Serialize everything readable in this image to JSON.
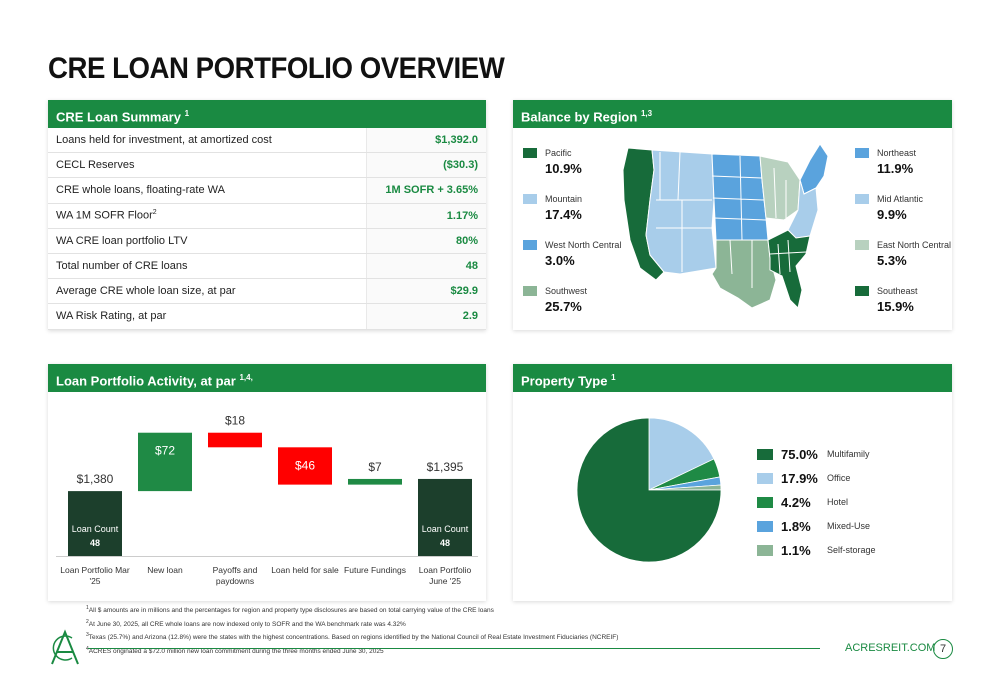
{
  "page": {
    "title": "CRE LOAN PORTFOLIO OVERVIEW"
  },
  "summary": {
    "title": "CRE Loan Summary",
    "sup": "1",
    "rows": [
      {
        "label": "Loans held for investment, at amortized cost",
        "value": "$1,392.0"
      },
      {
        "label": "CECL Reserves",
        "value": "($30.3)"
      },
      {
        "label": "CRE whole loans, floating-rate WA",
        "value": "1M SOFR + 3.65%"
      },
      {
        "label": "WA 1M SOFR Floor",
        "label_sup": "2",
        "value": "1.17%"
      },
      {
        "label": "WA CRE loan portfolio LTV",
        "value": "80%"
      },
      {
        "label": "Total number of CRE loans",
        "value": "48"
      },
      {
        "label": "Average CRE whole loan size, at par",
        "value": "$29.9"
      },
      {
        "label": "WA Risk Rating, at par",
        "value": "2.9"
      }
    ]
  },
  "region": {
    "title": "Balance by Region",
    "sup": "1,3",
    "items": [
      {
        "name": "Pacific",
        "pct": "10.9%",
        "color": "#176b3a"
      },
      {
        "name": "Mountain",
        "pct": "17.4%",
        "color": "#a8cdea"
      },
      {
        "name": "West North Central",
        "pct": "3.0%",
        "color": "#5aa3dd"
      },
      {
        "name": "Southwest",
        "pct": "25.7%",
        "color": "#8cb596"
      },
      {
        "name": "Northeast",
        "pct": "11.9%",
        "color": "#5aa3dd"
      },
      {
        "name": "Mid Atlantic",
        "pct": "9.9%",
        "color": "#a8cdea"
      },
      {
        "name": "East North Central",
        "pct": "5.3%",
        "color": "#b8d1bf"
      },
      {
        "name": "Southeast",
        "pct": "15.9%",
        "color": "#176b3a"
      }
    ]
  },
  "activity": {
    "title": "Loan Portfolio Activity, at par",
    "sup": "1,4,"
  },
  "property": {
    "title": "Property Type",
    "sup": "1"
  },
  "chart_data": [
    {
      "type": "bar",
      "subtype": "waterfall",
      "categories": [
        "Loan Portfolio Mar '25",
        "New loan",
        "Payoffs and paydowns",
        "Loan held for sale",
        "Future Fundings",
        "Loan Portfolio June '25"
      ],
      "values": [
        1380,
        72,
        -18,
        -46,
        7,
        1395
      ],
      "labels": [
        "$1,380",
        "$72",
        "$18",
        "$46",
        "$7",
        "$1,395"
      ],
      "kinds": [
        "total",
        "increase",
        "decrease",
        "decrease",
        "increase",
        "total"
      ],
      "loan_count_label": "Loan Count",
      "loan_counts": [
        "48",
        "",
        "",
        "",
        "",
        "48"
      ],
      "colors": {
        "total": "#1c3f2c",
        "increase": "#1f8a45",
        "decrease": "#ff0000"
      }
    },
    {
      "type": "pie",
      "labels": [
        "Multifamily",
        "Office",
        "Hotel",
        "Mixed-Use",
        "Self-storage"
      ],
      "values": [
        75.0,
        17.9,
        4.2,
        1.8,
        1.1
      ],
      "pct_labels": [
        "75.0%",
        "17.9%",
        "4.2%",
        "1.8%",
        "1.1%"
      ],
      "colors": [
        "#176b3a",
        "#a8cdea",
        "#1f8a45",
        "#5aa3dd",
        "#8cb596"
      ]
    }
  ],
  "footnotes": [
    {
      "sup": "1",
      "text": "All $ amounts are in millions and the percentages for region and property type disclosures are based on total carrying value of the CRE loans"
    },
    {
      "sup": "2",
      "text": "At June 30, 2025, all CRE whole loans are now indexed only to SOFR and the WA benchmark rate was 4.32%"
    },
    {
      "sup": "3",
      "text": "Texas (25.7%) and Arizona (12.8%) were the states with the highest concentrations.  Based on regions identified by the National Council of Real Estate Investment Fiduciaries (NCREIF)"
    },
    {
      "sup": "4",
      "text": "ACRES originated a $72.0 million new loan commitment during the three months ended June 30, 2025"
    }
  ],
  "footer": {
    "site": "ACRESREIT.COM",
    "page_number": "7"
  }
}
